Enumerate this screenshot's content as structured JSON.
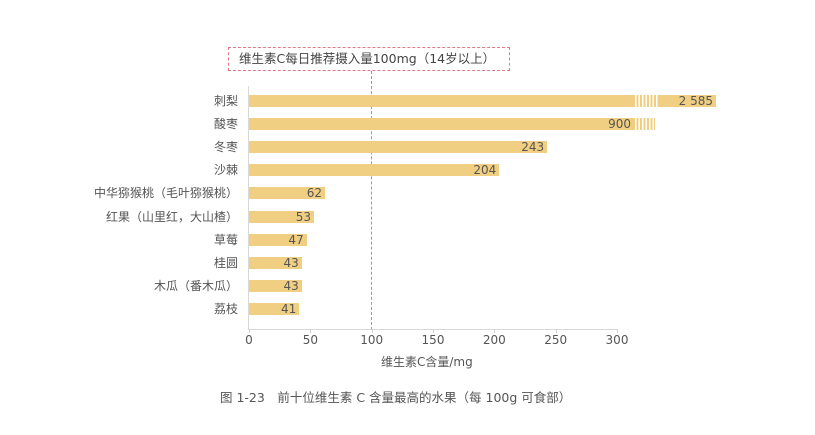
{
  "chart_data": {
    "type": "bar",
    "orientation": "horizontal",
    "title": "图 1-23　前十位维生素 C 含量最高的水果（每 100g 可食部）",
    "xlabel": "维生素C含量/mg",
    "ylabel": "",
    "xlim": [
      0,
      300
    ],
    "x_ticks": [
      "0",
      "50",
      "100",
      "150",
      "200",
      "250",
      "300"
    ],
    "categories": [
      "刺梨",
      "酸枣",
      "冬枣",
      "沙棘",
      "中华猕猴桃（毛叶猕猴桃）",
      "红果（山里红，大山楂）",
      "草莓",
      "桂圆",
      "木瓜（番木瓜）",
      "荔枝"
    ],
    "values": [
      2585,
      900,
      243,
      204,
      62,
      53,
      47,
      43,
      43,
      41
    ],
    "value_labels": [
      "2 585",
      "900",
      "243",
      "204",
      "62",
      "53",
      "47",
      "43",
      "43",
      "41"
    ],
    "broken_axis_bars": [
      "刺梨",
      "酸枣"
    ],
    "reference_line": {
      "value": 100,
      "label": "维生素C每日推荐摄入量100mg（14岁以上）",
      "color": "#e07a86",
      "style": "dashed"
    },
    "bar_color": "#f0cf82",
    "grid": false,
    "legend": null
  },
  "caption": "图 1-23　前十位维生素 C 含量最高的水果（每 100g 可食部）"
}
